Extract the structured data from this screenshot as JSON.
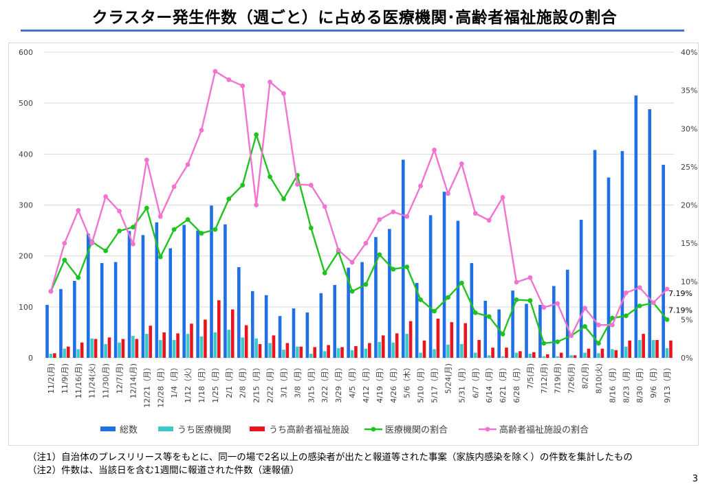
{
  "page": {
    "title": "クラスター発生件数（週ごと）に占める医療機関･高齢者福祉施設の割合",
    "note1": "（注1）自治体のプレスリリース等をもとに、同一の場で2名以上の感染者が出たと報道等された事案（家族内感染を除く）の件数を集計したもの",
    "note2": "（注2）件数は、当該日を含む1週間に報道された件数（速報値）",
    "page_number": "3"
  },
  "colors": {
    "total": "#1f6fe5",
    "medical": "#3cc9c9",
    "elderly": "#e8141e",
    "medical_ratio": "#1fc21f",
    "elderly_ratio": "#f074d0",
    "grid": "#d9d9d9",
    "title_rule": "#4472c4"
  },
  "chart_data": {
    "type": "bar",
    "combo": "bar+line (dual axis)",
    "categories": [
      "11/2(月)",
      "11/9(月)",
      "11/16(月)",
      "11/24(火)",
      "11/30(月)",
      "12/7(月)",
      "12/14(月)",
      "12/21（月）",
      "12/28（月）",
      "1/4（月）",
      "1/12（火）",
      "1/18（月）",
      "1/25（月）",
      "2/1（月）",
      "2/8（月）",
      "2/15（月）",
      "2/22（月）",
      "3/1（月）",
      "3/8（月）",
      "3/15（月）",
      "3/22（月）",
      "3/29（月）",
      "4/5（月）",
      "4/12（月）",
      "4/19（月）",
      "4/26（月）",
      "5/6（木）",
      "5/10（月）",
      "5/17（月）",
      "5/24(月)",
      "5/31（月）",
      "6/7（月）",
      "6/14（月）",
      "6/21（月）",
      "6/28（月）",
      "7/5(月)",
      "7/12(月)",
      "7/19(月)",
      "7/26(月)",
      "8/2(月)",
      "8/10(火)",
      "8/16（月）",
      "8/23（月）",
      "8/30（月）",
      "9/6（月）",
      "9/13（月）"
    ],
    "series": [
      {
        "name": "総数",
        "axis": "left",
        "kind": "bar",
        "values": [
          104,
          135,
          151,
          244,
          186,
          188,
          249,
          241,
          266,
          215,
          261,
          250,
          299,
          262,
          178,
          131,
          123,
          82,
          97,
          89,
          127,
          143,
          177,
          188,
          237,
          253,
          389,
          147,
          280,
          326,
          269,
          186,
          112,
          95,
          132,
          106,
          104,
          141,
          173,
          271,
          408,
          354,
          406,
          515,
          488,
          379
        ]
      },
      {
        "name": "うち医療機関",
        "axis": "left",
        "kind": "bar",
        "values": [
          8,
          18,
          17,
          38,
          27,
          30,
          43,
          47,
          35,
          35,
          47,
          42,
          50,
          55,
          40,
          38,
          29,
          16,
          22,
          8,
          13,
          19,
          15,
          18,
          31,
          30,
          47,
          10,
          17,
          26,
          27,
          10,
          5,
          3,
          10,
          8,
          3,
          3,
          5,
          10,
          9,
          17,
          22,
          35,
          35,
          19
        ]
      },
      {
        "name": "うち高齢者福祉施設",
        "axis": "left",
        "kind": "bar",
        "values": [
          9,
          22,
          30,
          37,
          40,
          37,
          37,
          63,
          50,
          48,
          67,
          75,
          113,
          95,
          64,
          27,
          44,
          29,
          22,
          21,
          25,
          21,
          23,
          29,
          44,
          48,
          72,
          34,
          77,
          70,
          68,
          35,
          20,
          20,
          13,
          11,
          7,
          10,
          5,
          18,
          18,
          15,
          34,
          47,
          35,
          34
        ]
      },
      {
        "name": "医療機関の割合",
        "axis": "right",
        "kind": "line",
        "values": [
          8.7,
          12.8,
          10.5,
          15.2,
          14.0,
          16.6,
          17.1,
          19.6,
          13.2,
          16.8,
          18.1,
          16.3,
          16.8,
          20.8,
          22.6,
          29.2,
          23.7,
          20.8,
          23.9,
          17.0,
          11.1,
          13.9,
          8.7,
          9.6,
          13.5,
          11.6,
          11.9,
          7.6,
          6.1,
          7.9,
          9.8,
          5.9,
          5.4,
          3.1,
          7.6,
          7.5,
          1.9,
          2.1,
          2.9,
          4.1,
          1.9,
          5.2,
          5.5,
          6.8,
          7.2,
          5.0
        ]
      },
      {
        "name": "高齢者福祉施設の割合",
        "axis": "right",
        "kind": "line",
        "values": [
          8.7,
          15.0,
          19.3,
          15.0,
          21.1,
          19.2,
          14.9,
          25.9,
          18.5,
          22.4,
          25.3,
          29.8,
          37.5,
          36.4,
          35.6,
          20.0,
          36.1,
          34.6,
          22.7,
          22.6,
          19.8,
          14.1,
          12.5,
          15.0,
          18.1,
          19.1,
          18.5,
          22.5,
          27.2,
          21.5,
          25.4,
          18.9,
          18.0,
          21.0,
          9.9,
          10.5,
          6.6,
          7.1,
          2.9,
          6.5,
          4.3,
          4.3,
          8.5,
          9.2,
          7.2,
          9.0
        ]
      }
    ],
    "left_axis": {
      "ylim": [
        0,
        600
      ],
      "ticks": [
        "0",
        "100",
        "200",
        "300",
        "400",
        "500",
        "600"
      ]
    },
    "right_axis": {
      "ylim": [
        0,
        40
      ],
      "ticks": [
        "0%",
        "5%",
        "10%",
        "15%",
        "20%",
        "25%",
        "30%",
        "35%",
        "40%"
      ]
    },
    "annotations": [
      "7.19%",
      "7.19%"
    ],
    "grid": "horizontal",
    "legend_position": "bottom"
  }
}
